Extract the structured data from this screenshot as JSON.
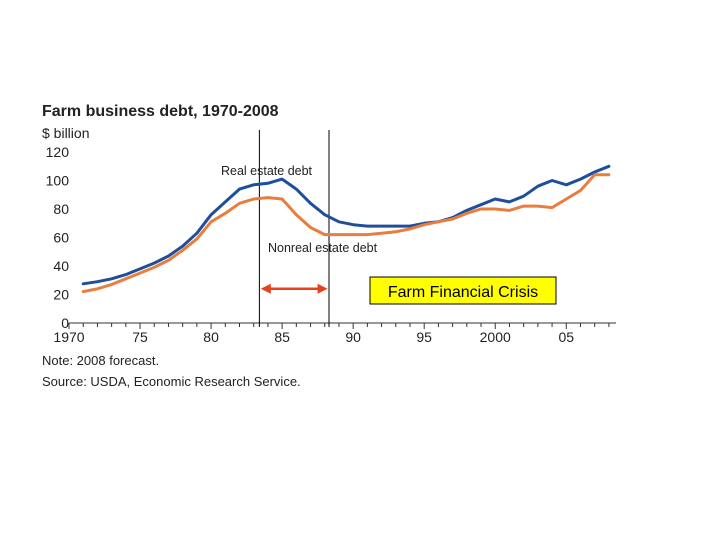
{
  "colors": {
    "real_estate": "#1f4e9a",
    "nonreal_estate": "#e87d3e",
    "arrow": "#e8401c",
    "callout_bg": "#ffff00",
    "axis": "#333333"
  },
  "chart_data": {
    "type": "line",
    "title": "Farm business debt, 1970-2008",
    "ylabel": "$ billion",
    "xlabel": "",
    "ylim": [
      0,
      120
    ],
    "xlim": [
      1970,
      2008.5
    ],
    "yticks": [
      0,
      20,
      40,
      60,
      80,
      100,
      120
    ],
    "xticks": [
      {
        "value": 1970,
        "label": "1970"
      },
      {
        "value": 1975,
        "label": "75"
      },
      {
        "value": 1980,
        "label": "80"
      },
      {
        "value": 1985,
        "label": "85"
      },
      {
        "value": 1990,
        "label": "90"
      },
      {
        "value": 1995,
        "label": "95"
      },
      {
        "value": 2000,
        "label": "2000"
      },
      {
        "value": 2005,
        "label": "05"
      }
    ],
    "series": [
      {
        "name": "Real estate debt",
        "key": "real_estate",
        "x": [
          1971,
          1972,
          1973,
          1974,
          1975,
          1976,
          1977,
          1978,
          1979,
          1980,
          1981,
          1982,
          1983,
          1984,
          1985,
          1986,
          1987,
          1988,
          1989,
          1990,
          1991,
          1992,
          1993,
          1994,
          1995,
          1996,
          1997,
          1998,
          1999,
          2000,
          2001,
          2002,
          2003,
          2004,
          2005,
          2006,
          2007,
          2008
        ],
        "values": [
          27.5,
          29,
          31,
          34,
          38,
          42,
          47,
          54,
          63,
          76,
          85,
          94,
          97,
          98,
          101,
          94,
          84,
          76,
          71,
          69,
          68,
          68,
          68,
          68,
          70,
          71,
          74,
          79,
          83,
          87,
          85,
          89,
          96,
          100,
          97,
          101,
          106,
          110
        ]
      },
      {
        "name": "Nonreal estate debt",
        "key": "nonreal_estate",
        "x": [
          1971,
          1972,
          1973,
          1974,
          1975,
          1976,
          1977,
          1978,
          1979,
          1980,
          1981,
          1982,
          1983,
          1984,
          1985,
          1986,
          1987,
          1988,
          1989,
          1990,
          1991,
          1992,
          1993,
          1994,
          1995,
          1996,
          1997,
          1998,
          1999,
          2000,
          2001,
          2002,
          2003,
          2004,
          2005,
          2006,
          2007,
          2008
        ],
        "values": [
          22,
          24,
          27,
          31,
          35,
          39,
          44,
          51,
          59,
          71,
          77,
          84,
          87,
          88,
          87,
          76,
          67,
          62,
          62,
          62,
          62,
          63,
          64,
          66,
          69,
          71,
          73,
          77,
          80,
          80,
          79,
          82,
          82,
          81,
          87,
          93,
          104,
          104
        ]
      }
    ],
    "reference_lines_x": [
      1983.4,
      1988.3
    ],
    "annotation_arrow_x": [
      1983.5,
      1988.2
    ],
    "annotation_arrow_y": 24
  },
  "labels": {
    "real_estate": "Real estate debt",
    "nonreal_estate": "Nonreal estate debt",
    "callout": "Farm Financial Crisis",
    "note": "Note: 2008 forecast.",
    "source": "Source: USDA, Economic Research Service."
  }
}
